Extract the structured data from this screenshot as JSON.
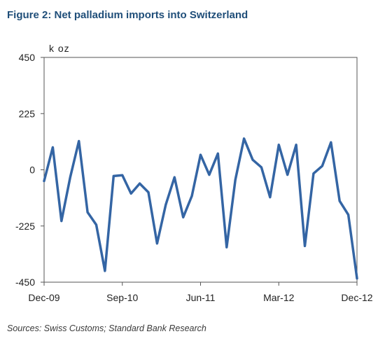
{
  "title": "Figure 2: Net palladium imports into Switzerland",
  "source": "Sources: Swiss Customs; Standard Bank Research",
  "chart_data": {
    "type": "line",
    "title": "Figure 2: Net palladium imports into Switzerland",
    "ylabel": "k oz",
    "xlabel": "",
    "ylim": [
      -450,
      450
    ],
    "yticks": [
      450,
      225,
      0,
      -225,
      -450
    ],
    "ytick_labels": [
      "450",
      "225",
      "0",
      "-225",
      "-450"
    ],
    "x_tick_labels": [
      "Dec-09",
      "Sep-10",
      "Jun-11",
      "Mar-12",
      "Dec-12"
    ],
    "x_tick_index": [
      0,
      9,
      18,
      27,
      36
    ],
    "grid": false,
    "legend": "none",
    "line_color": "#3465a4",
    "series": [
      {
        "values": [
          -45,
          90,
          -205,
          -30,
          115,
          -170,
          -220,
          -405,
          -25,
          -22,
          -95,
          -55,
          -90,
          -295,
          -140,
          -30,
          -190,
          -105,
          60,
          -20,
          65,
          -310,
          -40,
          125,
          40,
          10,
          -110,
          100,
          -20,
          100,
          -305,
          -15,
          15,
          110,
          -125,
          -180,
          -435
        ]
      }
    ]
  }
}
